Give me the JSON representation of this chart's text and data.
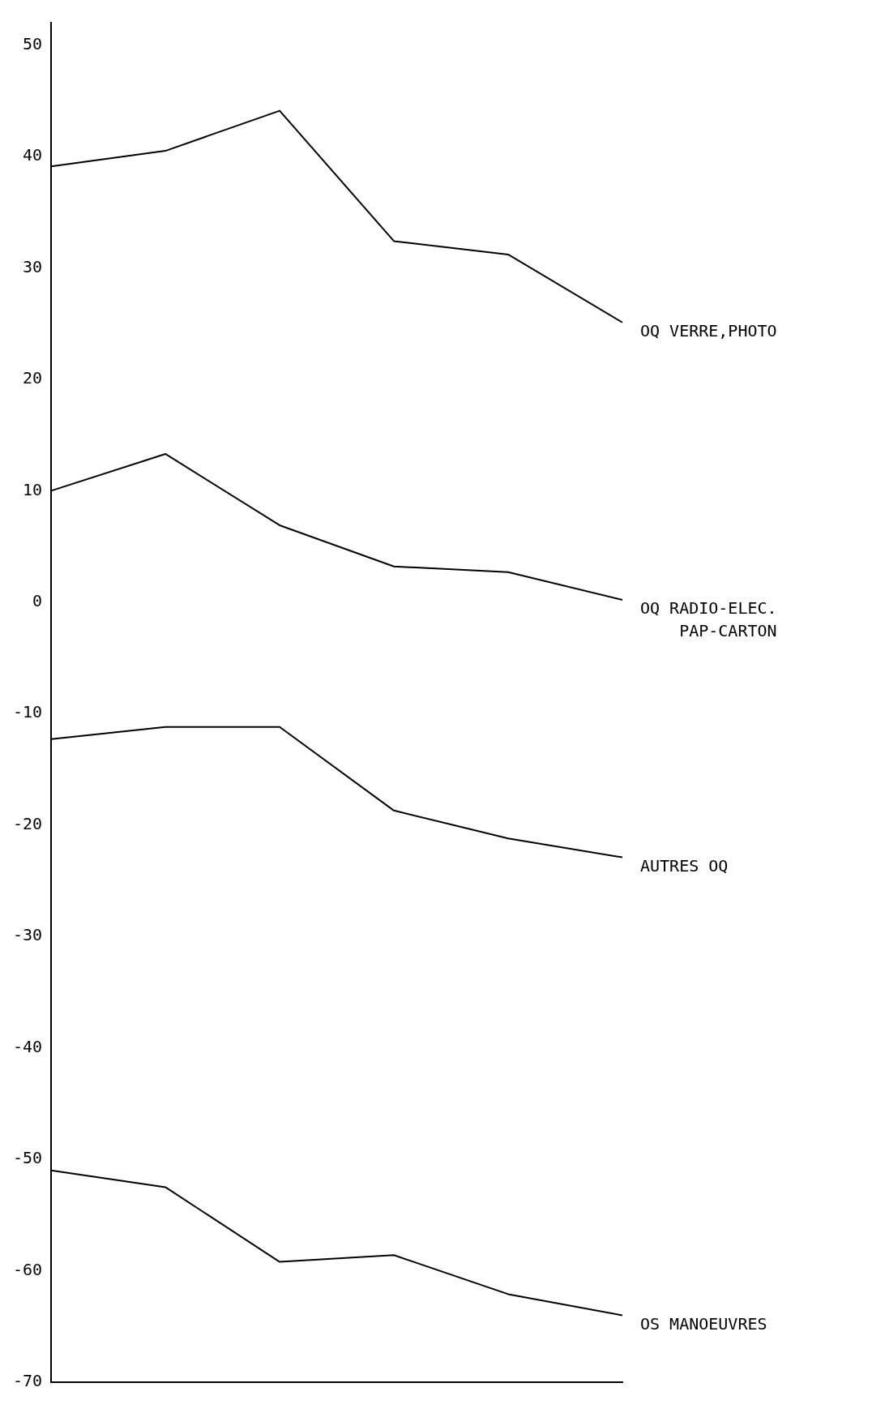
{
  "chart_data": {
    "type": "line",
    "categories": [
      null,
      null,
      null,
      null,
      null,
      null
    ],
    "series": [
      {
        "name": "OQ VERRE,PHOTO",
        "color": "#000000",
        "values": [
          39.1,
          40.5,
          44.1,
          32.4,
          31.2,
          25.1
        ]
      },
      {
        "name": "OQ RADIO-ELEC.\nPAP-CARTON",
        "color": "#000000",
        "values": [
          10,
          13.3,
          6.9,
          3.2,
          2.7,
          0.2
        ]
      },
      {
        "name": "AUTRES OQ",
        "color": "#000000",
        "values": [
          -12.3,
          -11.2,
          -11.2,
          -18.7,
          -21.2,
          -22.9
        ]
      },
      {
        "name": "OS MANOEUVRES",
        "color": "#000000",
        "values": [
          -51,
          -52.5,
          -59.2,
          -58.6,
          -62.1,
          -64
        ]
      }
    ],
    "ylim": [
      -70,
      52
    ],
    "yticks": [
      -70,
      -60,
      -50,
      -40,
      -30,
      -20,
      -10,
      0,
      10,
      20,
      30,
      40,
      50
    ],
    "grid": false,
    "legend": false,
    "marker": "none",
    "line_style": "solid",
    "tick_labels": "y"
  }
}
